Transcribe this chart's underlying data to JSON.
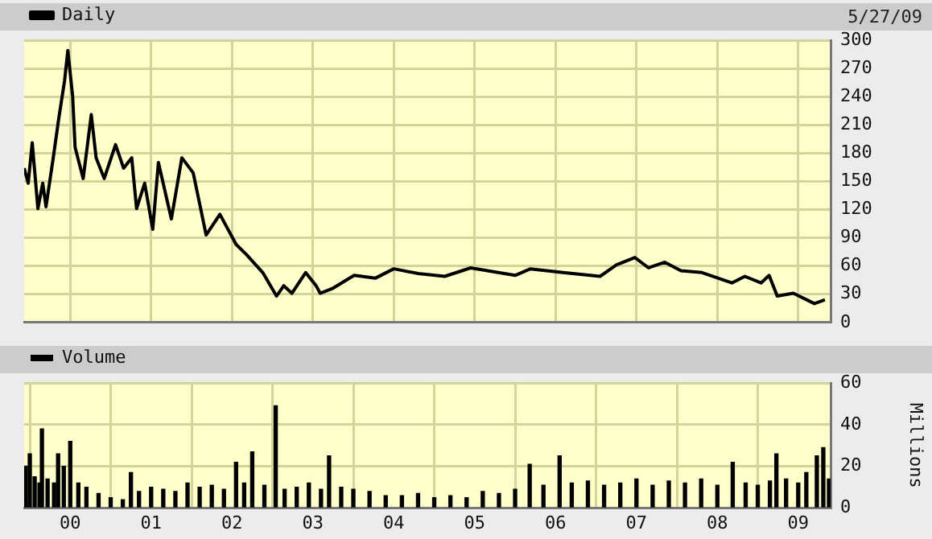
{
  "chart_data": [
    {
      "type": "line",
      "x": [
        1999.43,
        1999.48,
        1999.53,
        1999.6,
        1999.66,
        1999.7,
        1999.79,
        1999.86,
        1999.93,
        1999.97,
        2000.03,
        2000.06,
        2000.16,
        2000.26,
        2000.32,
        2000.42,
        2000.56,
        2000.66,
        2000.76,
        2000.82,
        2000.92,
        2001.02,
        2001.09,
        2001.25,
        2001.38,
        2001.52,
        2001.68,
        2001.85,
        2002.05,
        2002.18,
        2002.38,
        2002.55,
        2002.64,
        2002.74,
        2002.91,
        2003.04,
        2003.09,
        2003.24,
        2003.51,
        2003.77,
        2004.0,
        2004.3,
        2004.63,
        2004.95,
        2005.5,
        2005.69,
        2006.09,
        2006.55,
        2006.75,
        2006.98,
        2007.15,
        2007.35,
        2007.55,
        2007.81,
        2008.18,
        2008.34,
        2008.54,
        2008.64,
        2008.74,
        2008.94,
        2009.2,
        2009.33
      ],
      "series": [
        {
          "name": "Daily",
          "color": "#000000",
          "values": [
            164,
            148,
            191,
            121,
            148,
            123,
            175,
            218,
            257,
            289,
            240,
            186,
            153,
            221,
            175,
            153,
            189,
            164,
            175,
            121,
            148,
            99,
            170,
            110,
            175,
            159,
            93,
            115,
            83,
            72,
            53,
            28,
            39,
            31,
            53,
            39,
            31,
            36,
            50,
            47,
            57,
            52,
            49,
            58,
            50,
            57,
            53,
            49,
            61,
            69,
            58,
            64,
            55,
            53,
            42,
            49,
            42,
            50,
            28,
            31,
            20,
            24
          ]
        }
      ],
      "xlim": [
        1999.43,
        2009.4
      ],
      "xticks": [
        {
          "value": 2000,
          "label": null
        },
        {
          "value": 2001,
          "label": null
        },
        {
          "value": 2002,
          "label": null
        },
        {
          "value": 2003,
          "label": null
        },
        {
          "value": 2004,
          "label": null
        },
        {
          "value": 2005,
          "label": null
        },
        {
          "value": 2006,
          "label": null
        },
        {
          "value": 2007,
          "label": null
        },
        {
          "value": 2008,
          "label": null
        },
        {
          "value": 2009,
          "label": null
        }
      ],
      "ylim": [
        0,
        300
      ],
      "yticks": [
        0,
        30,
        60,
        90,
        120,
        150,
        180,
        210,
        240,
        270,
        300
      ],
      "tick_labels": "y",
      "grid": true,
      "legend": "top left",
      "marker": "none",
      "line_style": "solid",
      "annotations": [
        "5/27/09"
      ]
    },
    {
      "type": "bar",
      "x": [
        1999.45,
        1999.5,
        1999.56,
        1999.62,
        1999.65,
        1999.72,
        1999.8,
        1999.85,
        1999.92,
        2000.0,
        2000.1,
        2000.2,
        2000.35,
        2000.5,
        2000.65,
        2000.75,
        2000.85,
        2001.0,
        2001.15,
        2001.3,
        2001.45,
        2001.6,
        2001.75,
        2001.9,
        2002.05,
        2002.15,
        2002.25,
        2002.4,
        2002.54,
        2002.65,
        2002.8,
        2002.95,
        2003.1,
        2003.2,
        2003.35,
        2003.5,
        2003.7,
        2003.9,
        2004.1,
        2004.3,
        2004.5,
        2004.7,
        2004.9,
        2005.1,
        2005.3,
        2005.5,
        2005.68,
        2005.85,
        2006.05,
        2006.2,
        2006.4,
        2006.6,
        2006.8,
        2007.0,
        2007.2,
        2007.4,
        2007.6,
        2007.8,
        2008.0,
        2008.19,
        2008.35,
        2008.5,
        2008.65,
        2008.73,
        2008.85,
        2009.0,
        2009.1,
        2009.23,
        2009.31,
        2009.38
      ],
      "series": [
        {
          "name": "Volume",
          "color": "#000000",
          "values": [
            20,
            26,
            15,
            12,
            38,
            14,
            12,
            26,
            20,
            32,
            12,
            10,
            7,
            5,
            4,
            17,
            8,
            10,
            9,
            8,
            12,
            10,
            11,
            9,
            22,
            12,
            27,
            11,
            49,
            9,
            10,
            12,
            9,
            25,
            10,
            9,
            8,
            6,
            6,
            7,
            5,
            6,
            5,
            8,
            7,
            9,
            21,
            11,
            25,
            12,
            13,
            11,
            12,
            14,
            11,
            13,
            12,
            14,
            11,
            22,
            12,
            11,
            13,
            26,
            14,
            12,
            17,
            25,
            29,
            14
          ]
        }
      ],
      "xlim": [
        1999.43,
        2009.4
      ],
      "xticks": [
        {
          "value": 2000,
          "label": "00"
        },
        {
          "value": 2001,
          "label": "01"
        },
        {
          "value": 2002,
          "label": "02"
        },
        {
          "value": 2003,
          "label": "03"
        },
        {
          "value": 2004,
          "label": "04"
        },
        {
          "value": 2005,
          "label": "05"
        },
        {
          "value": 2006,
          "label": "06"
        },
        {
          "value": 2007,
          "label": "07"
        },
        {
          "value": 2008,
          "label": "08"
        },
        {
          "value": 2009,
          "label": "09"
        }
      ],
      "ylim": [
        0,
        60
      ],
      "yticks": [
        0,
        20,
        40,
        60
      ],
      "ylabel": "Millions",
      "grid": true,
      "legend": "top left"
    }
  ]
}
